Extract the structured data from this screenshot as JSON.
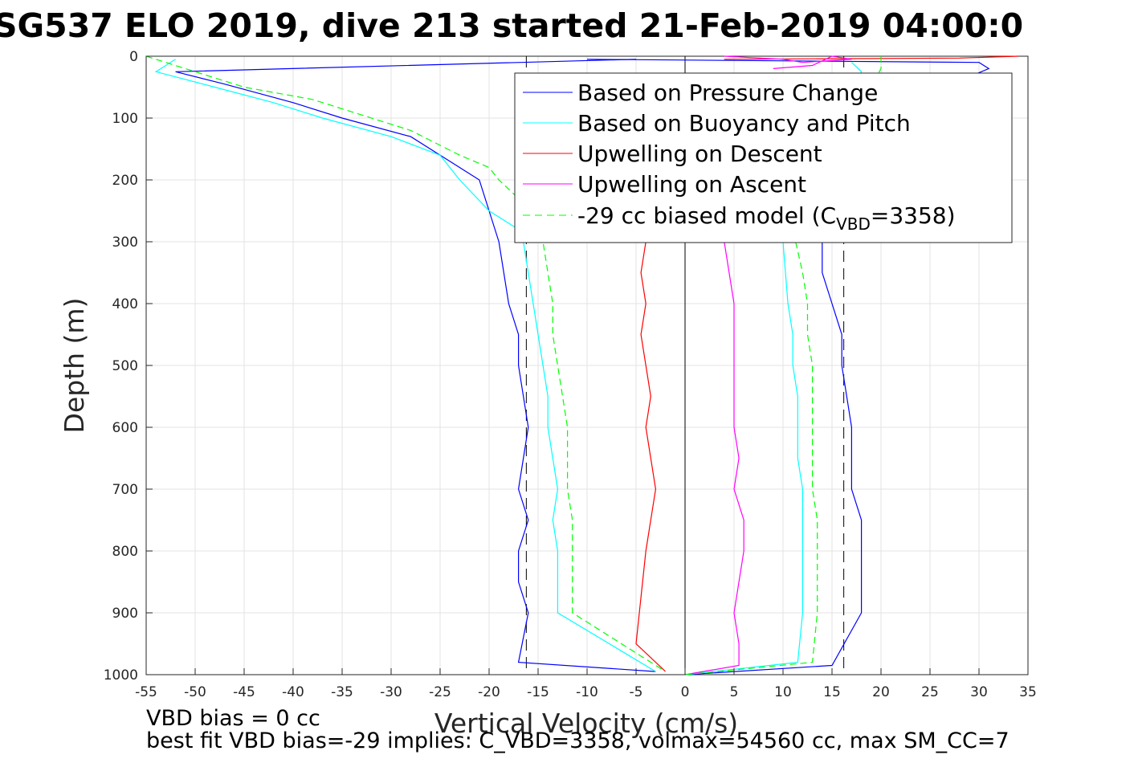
{
  "chart_data": {
    "type": "line",
    "title": "SG537 ELO 2019, dive 213 started 21-Feb-2019 04:00:0",
    "xlabel": "Vertical Velocity (cm/s)",
    "ylabel": "Depth (m)",
    "xlim": [
      -55,
      35
    ],
    "ylim": [
      0,
      1000
    ],
    "y_reversed": true,
    "grid": true,
    "xticks": [
      "-55",
      "-50",
      "-45",
      "-40",
      "-35",
      "-30",
      "-25",
      "-20",
      "-15",
      "-10",
      "-5",
      "0",
      "5",
      "10",
      "15",
      "20",
      "25",
      "30",
      "35"
    ],
    "yticks": [
      "0",
      "100",
      "200",
      "300",
      "400",
      "500",
      "600",
      "700",
      "800",
      "900",
      "1000"
    ],
    "legend_position": "top-right",
    "legend": {
      "pressure": "Based on Pressure Change",
      "buoyancy": "Based on Buoyancy and Pitch",
      "up_descent": "Upwelling on Descent",
      "up_ascent": "Upwelling on Ascent",
      "model_prefix": "-29 cc biased model (C",
      "model_sub": "VBD",
      "model_suffix": "=3358)"
    },
    "series": [
      {
        "key": "pressure_desc",
        "color": "#0000ff",
        "style": "solid",
        "x": [
          -5,
          -52,
          -47,
          -40,
          -35,
          -28,
          -24,
          -21,
          -20,
          -19,
          -18,
          -17,
          -17,
          -16,
          -17,
          -16,
          -17,
          -17,
          -16,
          -17,
          -3
        ],
        "y": [
          5,
          25,
          45,
          75,
          100,
          130,
          170,
          200,
          250,
          300,
          400,
          450,
          500,
          600,
          700,
          750,
          800,
          850,
          900,
          980,
          995
        ]
      },
      {
        "key": "pressure_asc",
        "color": "#0000ff",
        "style": "solid",
        "x": [
          -10,
          30,
          31,
          28,
          14,
          14,
          15,
          16,
          16,
          17,
          17,
          18,
          18,
          18,
          18,
          15,
          0
        ],
        "y": [
          5,
          10,
          20,
          40,
          300,
          350,
          400,
          450,
          500,
          600,
          700,
          750,
          800,
          850,
          900,
          985,
          1000
        ]
      },
      {
        "key": "buoyancy_desc",
        "color": "#00ffff",
        "style": "solid",
        "x": [
          -52,
          -54,
          -48,
          -42,
          -37,
          -30,
          -25,
          -24,
          -23,
          -20,
          -17,
          -16.5,
          -16,
          -15.5,
          -15,
          -14.5,
          -14,
          -14,
          -13.5,
          -13,
          -13.5,
          -13,
          -13,
          -13,
          -3
        ],
        "y": [
          5,
          25,
          50,
          75,
          100,
          130,
          160,
          180,
          200,
          250,
          280,
          300,
          350,
          400,
          450,
          500,
          550,
          600,
          650,
          700,
          750,
          800,
          850,
          900,
          995
        ]
      },
      {
        "key": "buoyancy_asc",
        "color": "#00ffff",
        "style": "solid",
        "x": [
          17,
          18,
          10,
          10.5,
          11,
          11,
          11.5,
          11.5,
          11.5,
          12,
          12,
          12,
          12,
          12,
          11.5,
          0
        ],
        "y": [
          10,
          25,
          300,
          400,
          450,
          500,
          550,
          600,
          650,
          700,
          750,
          800,
          850,
          900,
          980,
          1000
        ]
      },
      {
        "key": "up_descent",
        "color": "#ff0000",
        "style": "solid",
        "x": [
          -4,
          -4.5,
          -4,
          -4.5,
          -4,
          -3.5,
          -4,
          -3.5,
          -3,
          -3.5,
          -4,
          -5,
          -2
        ],
        "y": [
          300,
          350,
          400,
          450,
          500,
          550,
          600,
          650,
          700,
          750,
          800,
          950,
          995
        ]
      },
      {
        "key": "up_descent_surface",
        "color": "#ff0000",
        "style": "solid",
        "x": [
          4,
          28,
          34,
          34
        ],
        "y": [
          5,
          3,
          0,
          0
        ]
      },
      {
        "key": "up_ascent",
        "color": "#ff00ff",
        "style": "solid",
        "x": [
          4,
          4.5,
          5,
          5,
          5,
          5,
          5,
          5.5,
          5,
          6,
          6,
          5.5,
          5,
          5.5,
          5.5,
          0
        ],
        "y": [
          300,
          350,
          400,
          450,
          500,
          550,
          600,
          650,
          700,
          750,
          800,
          850,
          900,
          950,
          985,
          1000
        ]
      },
      {
        "key": "up_ascent_surface",
        "color": "#ff00ff",
        "style": "solid",
        "x": [
          4,
          10,
          12,
          17,
          15,
          13,
          9
        ],
        "y": [
          0,
          5,
          10,
          5,
          0,
          15,
          20
        ]
      },
      {
        "key": "model_desc",
        "color": "#00ff00",
        "style": "dashed",
        "x": [
          -55,
          -50,
          -45,
          -38,
          -34,
          -28,
          -23,
          -20,
          -19,
          -15,
          -14.5,
          -13.5,
          -13.5,
          -13,
          -12.5,
          -12,
          -12,
          -11.5,
          -11.5,
          -11.5,
          -2
        ],
        "y": [
          0,
          25,
          50,
          70,
          90,
          120,
          160,
          180,
          200,
          260,
          300,
          400,
          450,
          500,
          550,
          600,
          700,
          750,
          800,
          900,
          995
        ]
      },
      {
        "key": "model_asc",
        "color": "#00ff00",
        "style": "dashed",
        "x": [
          20,
          20,
          11,
          12,
          12.5,
          12.5,
          13,
          13,
          13,
          13,
          13.5,
          13.5,
          13.5,
          13,
          0
        ],
        "y": [
          0,
          20,
          280,
          350,
          400,
          450,
          500,
          550,
          600,
          700,
          750,
          800,
          900,
          980,
          1000
        ]
      }
    ],
    "reference_lines": [
      {
        "x": -16.2,
        "style": "dashed",
        "color": "#000000",
        "y": [
          0,
          1000
        ]
      },
      {
        "x": 16.2,
        "style": "dashed",
        "color": "#000000",
        "y": [
          0,
          1000
        ]
      },
      {
        "x": 0,
        "style": "solid",
        "color": "#000000",
        "y": [
          0,
          1000
        ]
      }
    ]
  },
  "footer": {
    "line1": "VBD bias = 0 cc",
    "line2": "best fit VBD bias=-29 implies: C_VBD=3358, volmax=54560 cc, max SM_CC=7"
  }
}
